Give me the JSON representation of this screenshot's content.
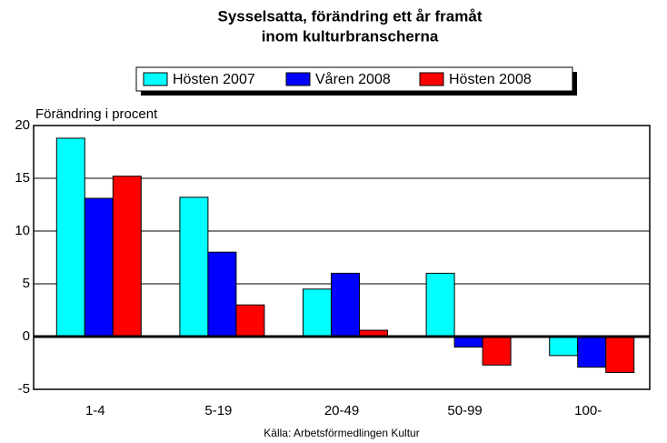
{
  "chart_data": {
    "type": "bar",
    "title": [
      "Sysselsatta, förändring ett år framåt",
      "inom kulturbranscherna"
    ],
    "y_axis_label": "Förändring i procent",
    "source": "Källa: Arbetsförmedlingen Kultur",
    "categories": [
      "1-4",
      "5-19",
      "20-49",
      "50-99",
      "100-"
    ],
    "series": [
      {
        "name": "Hösten 2007",
        "color": "#00ffff",
        "values": [
          18.8,
          13.2,
          4.5,
          6.0,
          -1.8
        ]
      },
      {
        "name": "Våren 2008",
        "color": "#0000ff",
        "values": [
          13.1,
          8.0,
          6.0,
          -1.0,
          -2.9
        ]
      },
      {
        "name": "Hösten 2008",
        "color": "#ff0000",
        "values": [
          15.2,
          3.0,
          0.6,
          -2.7,
          -3.4
        ]
      }
    ],
    "ylim": [
      -5,
      20
    ],
    "yticks": [
      -5,
      0,
      5,
      10,
      15,
      20
    ],
    "grid": true,
    "legend": "top"
  }
}
